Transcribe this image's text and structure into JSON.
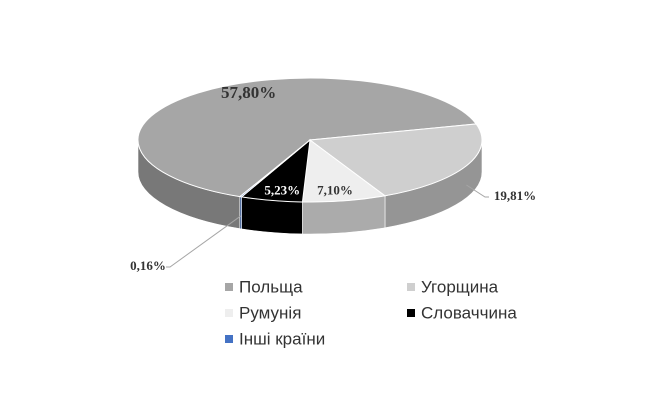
{
  "chart_data": {
    "type": "pie3d",
    "categories": [
      "Польща",
      "Угорщина",
      "Румунія",
      "Словаччина",
      "Інші країни"
    ],
    "values": [
      57.8,
      19.81,
      7.1,
      5.23,
      0.16
    ],
    "value_labels": [
      "57,80%",
      "19,81%",
      "7,10%",
      "5,23%",
      "0,16%"
    ],
    "colors": [
      "#a6a6a6",
      "#cfcfcf",
      "#eeeeee",
      "#000000",
      "#4472c4"
    ],
    "legend": "bottom"
  }
}
